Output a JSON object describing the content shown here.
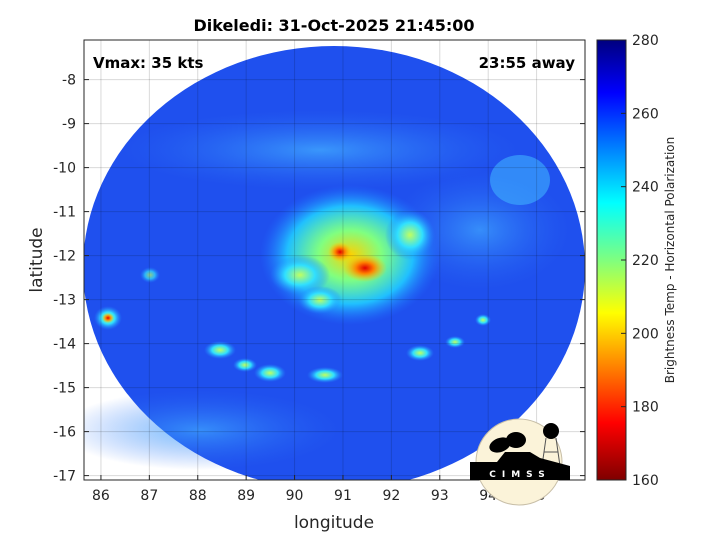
{
  "chart_data": {
    "type": "heatmap",
    "title": "Dikeledi: 31-Oct-2025 21:45:00",
    "xlabel": "longitude",
    "ylabel": "latitude",
    "xlim": [
      85.65,
      96.0
    ],
    "ylim": [
      -17.1,
      -7.1
    ],
    "xticks": [
      86,
      87,
      88,
      89,
      90,
      91,
      92,
      93,
      94,
      95
    ],
    "yticks": [
      -8,
      -9,
      -10,
      -11,
      -12,
      -13,
      -14,
      -15,
      -16,
      -17
    ],
    "grid": true,
    "colorbar": {
      "label": "Brightness Temp - Horizontal Polarization",
      "range": [
        160,
        280
      ],
      "ticks": [
        160,
        180,
        200,
        220,
        240,
        260,
        280
      ],
      "colormap": "jet (reversed: low = dark red, high = dark blue)"
    },
    "annotations": {
      "vmax": "Vmax: 35 kts",
      "time_away": "23:55 away"
    },
    "storm_center": {
      "lon": 91.0,
      "lat": -12.1
    },
    "logo": "CIMSS"
  }
}
